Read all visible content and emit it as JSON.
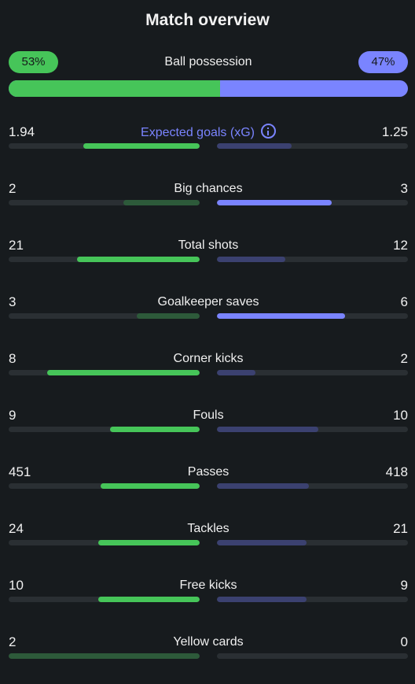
{
  "title": "Match overview",
  "possession": {
    "label": "Ball possession",
    "home": "53%",
    "away": "47%",
    "home_fraction": 0.53
  },
  "colors": {
    "home": "#46c559",
    "away": "#7a84ff",
    "home_dim": "#2d5a3a",
    "away_dim": "#3b4170",
    "track": "#2a2f33",
    "background": "#171b1e"
  },
  "stats": [
    {
      "label": "Expected goals (xG)",
      "home": "1.94",
      "away": "1.25",
      "home_fill": 0.61,
      "away_fill": 0.39,
      "home_leads": true,
      "away_leads": false,
      "accent": true,
      "info_icon": "info-icon"
    },
    {
      "label": "Big chances",
      "home": "2",
      "away": "3",
      "home_fill": 0.4,
      "away_fill": 0.6,
      "home_leads": false,
      "away_leads": true
    },
    {
      "label": "Total shots",
      "home": "21",
      "away": "12",
      "home_fill": 0.64,
      "away_fill": 0.36,
      "home_leads": true,
      "away_leads": false
    },
    {
      "label": "Goalkeeper saves",
      "home": "3",
      "away": "6",
      "home_fill": 0.33,
      "away_fill": 0.67,
      "home_leads": false,
      "away_leads": true
    },
    {
      "label": "Corner kicks",
      "home": "8",
      "away": "2",
      "home_fill": 0.8,
      "away_fill": 0.2,
      "home_leads": true,
      "away_leads": false
    },
    {
      "label": "Fouls",
      "home": "9",
      "away": "10",
      "home_fill": 0.47,
      "away_fill": 0.53,
      "home_leads": true,
      "away_leads": false
    },
    {
      "label": "Passes",
      "home": "451",
      "away": "418",
      "home_fill": 0.52,
      "away_fill": 0.48,
      "home_leads": true,
      "away_leads": false
    },
    {
      "label": "Tackles",
      "home": "24",
      "away": "21",
      "home_fill": 0.53,
      "away_fill": 0.47,
      "home_leads": true,
      "away_leads": false
    },
    {
      "label": "Free kicks",
      "home": "10",
      "away": "9",
      "home_fill": 0.53,
      "away_fill": 0.47,
      "home_leads": true,
      "away_leads": false
    },
    {
      "label": "Yellow cards",
      "home": "2",
      "away": "0",
      "home_fill": 1.0,
      "away_fill": 0.0,
      "home_leads": false,
      "away_leads": false
    }
  ]
}
